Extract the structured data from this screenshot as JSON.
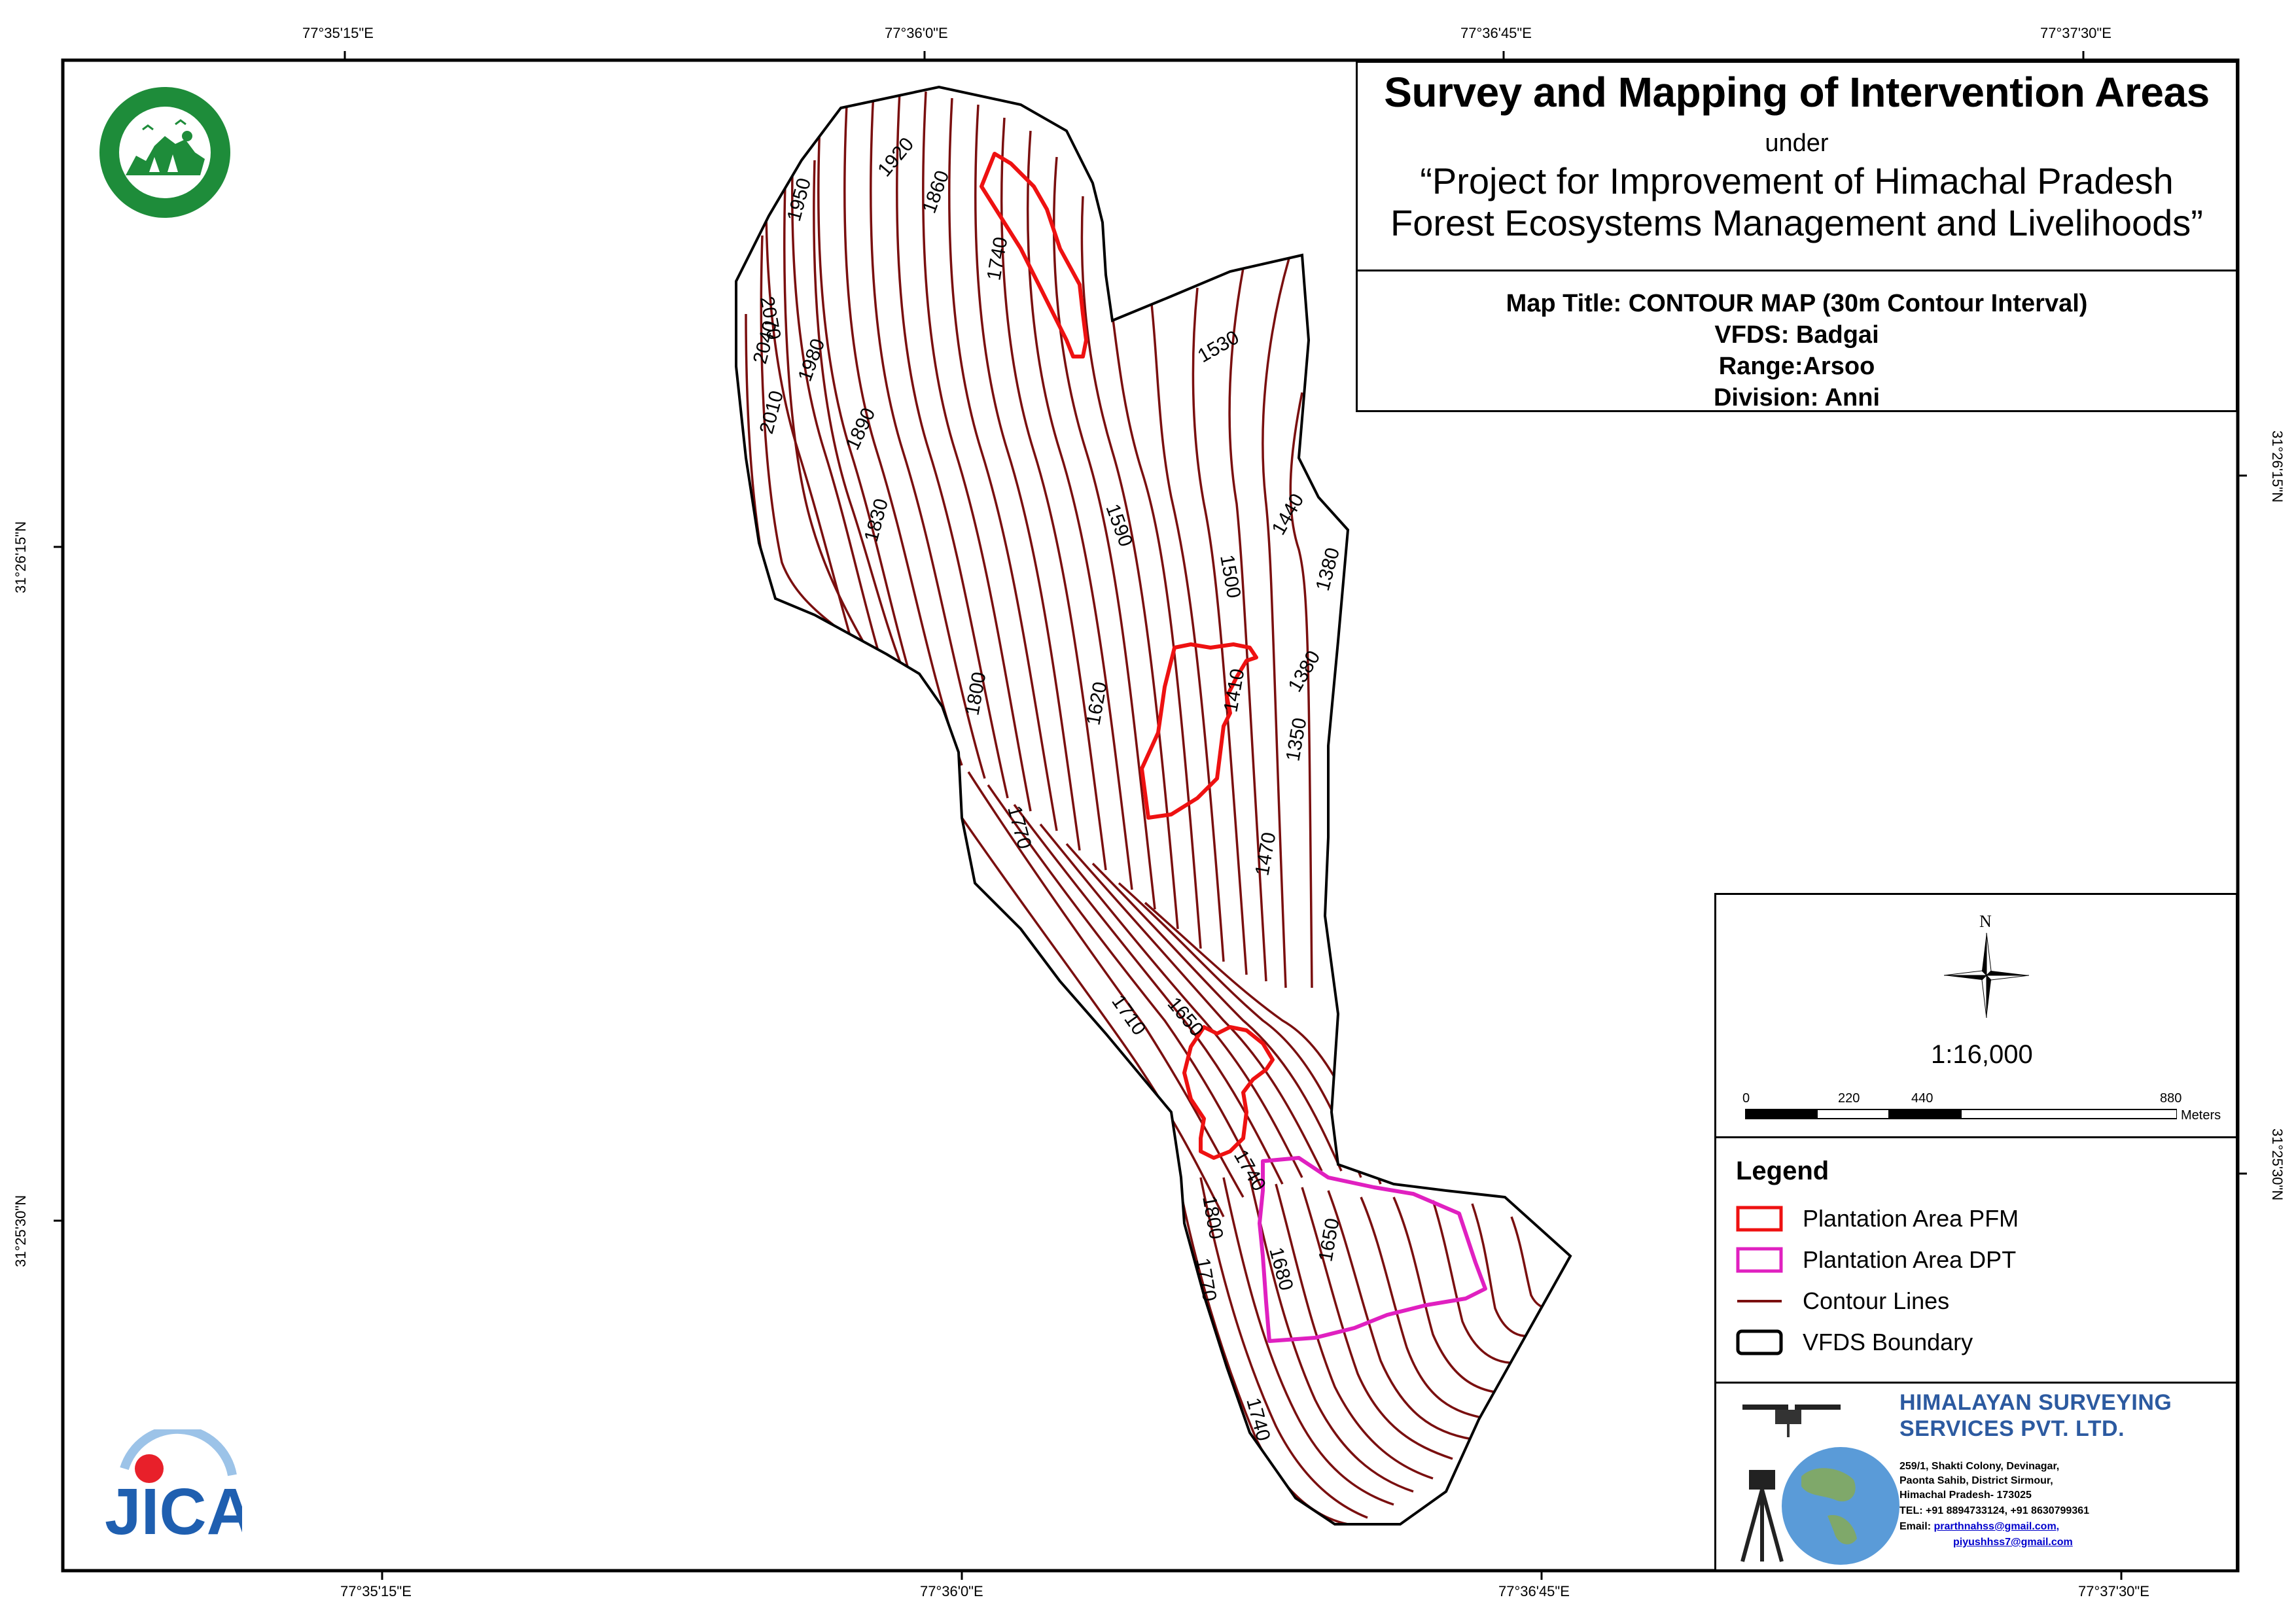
{
  "title": {
    "main": "Survey and Mapping of Intervention Areas",
    "under": "under",
    "project_line1": "“Project for Improvement of Himachal Pradesh",
    "project_line2": "Forest Ecosystems Management and Livelihoods”"
  },
  "info": {
    "map_title": "Map Title: CONTOUR MAP (30m Contour Interval)",
    "vfds": "VFDS: Badgai",
    "range": "Range:Arsoo",
    "division": "Division: Anni"
  },
  "graticule": {
    "top": [
      "77°35'15\"E",
      "77°36'0\"E",
      "77°36'45\"E",
      "77°37'30\"E"
    ],
    "bottom": [
      "77°35'15\"E",
      "77°36'0\"E",
      "77°36'45\"E",
      "77°37'30\"E"
    ],
    "left": [
      "31°26'15\"N",
      "31°25'30\"N"
    ],
    "right": [
      "31°26'15\"N",
      "31°25'30\"N"
    ]
  },
  "north_label": "N",
  "scale": {
    "ratio": "1:16,000",
    "ticks": [
      "0",
      "220",
      "440",
      "880"
    ],
    "unit": "Meters"
  },
  "legend": {
    "title": "Legend",
    "items": [
      {
        "label": "Plantation Area PFM",
        "color": "#ee1111"
      },
      {
        "label": "Plantation Area DPT",
        "color": "#e020c0"
      },
      {
        "label": "Contour Lines",
        "color": "#7a0f0f"
      },
      {
        "label": "VFDS Boundary",
        "color": "#000000"
      }
    ]
  },
  "company": {
    "name_line1": "HIMALAYAN SURVEYING",
    "name_line2": "SERVICES PVT. LTD.",
    "address_line1": "259/1, Shakti Colony, Devinagar,",
    "address_line2": "Paonta Sahib, District Sirmour,",
    "address_line3": "Himachal Pradesh- 173025",
    "tel": "TEL: +91 8894733124, +91 8630799361",
    "email_label": "Email:",
    "email1": "prarthnahss@gmail.com,",
    "email2": "piyushhss7@gmail.com"
  },
  "contour_labels": [
    "1920",
    "1860",
    "1950",
    "2070",
    "2040",
    "1980",
    "2010",
    "1890",
    "1830",
    "1740",
    "1530",
    "1590",
    "1440",
    "1500",
    "1380",
    "1410",
    "1380",
    "1350",
    "1800",
    "1620",
    "1770",
    "1470",
    "1710",
    "1650",
    "1740",
    "1800",
    "1680",
    "1650",
    "1770",
    "1740"
  ],
  "colors": {
    "contour": "#7a0f0f",
    "pfm": "#ee1111",
    "dpt": "#e020c0",
    "boundary": "#000000",
    "company": "#2c5aa0",
    "logo_green": "#1e8c3a",
    "jica_blue": "#1f5fb0",
    "jica_red": "#e8202a"
  },
  "logos": {
    "forest_dept": "himachal-forest-department-logo",
    "jica": "jica"
  }
}
